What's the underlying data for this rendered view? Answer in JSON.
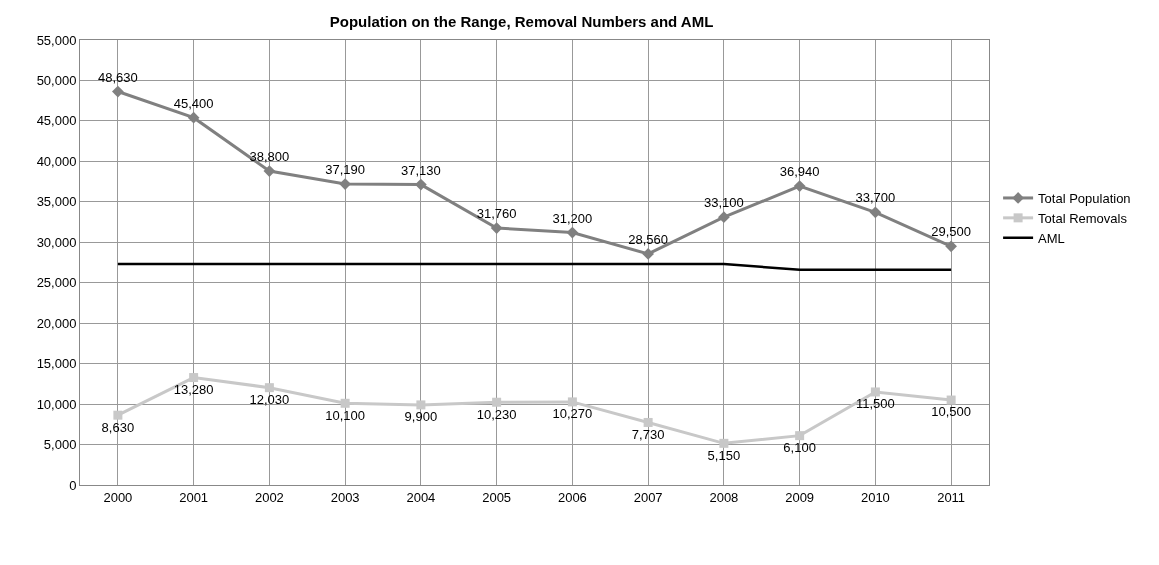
{
  "chart_data": {
    "type": "line",
    "title": "Population on the Range, Removal Numbers and AML",
    "categories": [
      "2000",
      "2001",
      "2002",
      "2003",
      "2004",
      "2005",
      "2006",
      "2007",
      "2008",
      "2009",
      "2010",
      "2011"
    ],
    "series": [
      {
        "name": "Total Population",
        "color": "#808080",
        "marker": "diamond",
        "values": [
          48630,
          45400,
          38800,
          37190,
          37130,
          31760,
          31200,
          28560,
          33100,
          36940,
          33700,
          29500
        ],
        "value_labels": [
          "48,630",
          "45,400",
          "38,800",
          "37,190",
          "37,130",
          "31,760",
          "31,200",
          "28,560",
          "33,100",
          "36,940",
          "33,700",
          "29,500"
        ]
      },
      {
        "name": "Total Removals",
        "color": "#c8c8c8",
        "marker": "square",
        "values": [
          8630,
          13280,
          12030,
          10100,
          9900,
          10230,
          10270,
          7730,
          5150,
          6100,
          11500,
          10500
        ],
        "value_labels": [
          "8,630",
          "13,280",
          "12,030",
          "10,100",
          "9,900",
          "10,230",
          "10,270",
          "7,730",
          "5,150",
          "6,100",
          "11,500",
          "10,500"
        ]
      },
      {
        "name": "AML",
        "color": "#000000",
        "marker": "none",
        "values": [
          27300,
          27300,
          27300,
          27300,
          27300,
          27300,
          27300,
          27300,
          27300,
          26600,
          26600,
          26600
        ]
      }
    ],
    "ylim": [
      0,
      55000
    ],
    "yticks": [
      {
        "value": 0,
        "label": "0"
      },
      {
        "value": 5000,
        "label": "5,000"
      },
      {
        "value": 10000,
        "label": "10,000"
      },
      {
        "value": 15000,
        "label": "15,000"
      },
      {
        "value": 20000,
        "label": "20,000"
      },
      {
        "value": 25000,
        "label": "25,000"
      },
      {
        "value": 30000,
        "label": "30,000"
      },
      {
        "value": 35000,
        "label": "35,000"
      },
      {
        "value": 40000,
        "label": "40,000"
      },
      {
        "value": 45000,
        "label": "45,000"
      },
      {
        "value": 50000,
        "label": "50,000"
      },
      {
        "value": 55000,
        "label": "55,000"
      }
    ],
    "grid": true,
    "legend": "right"
  }
}
